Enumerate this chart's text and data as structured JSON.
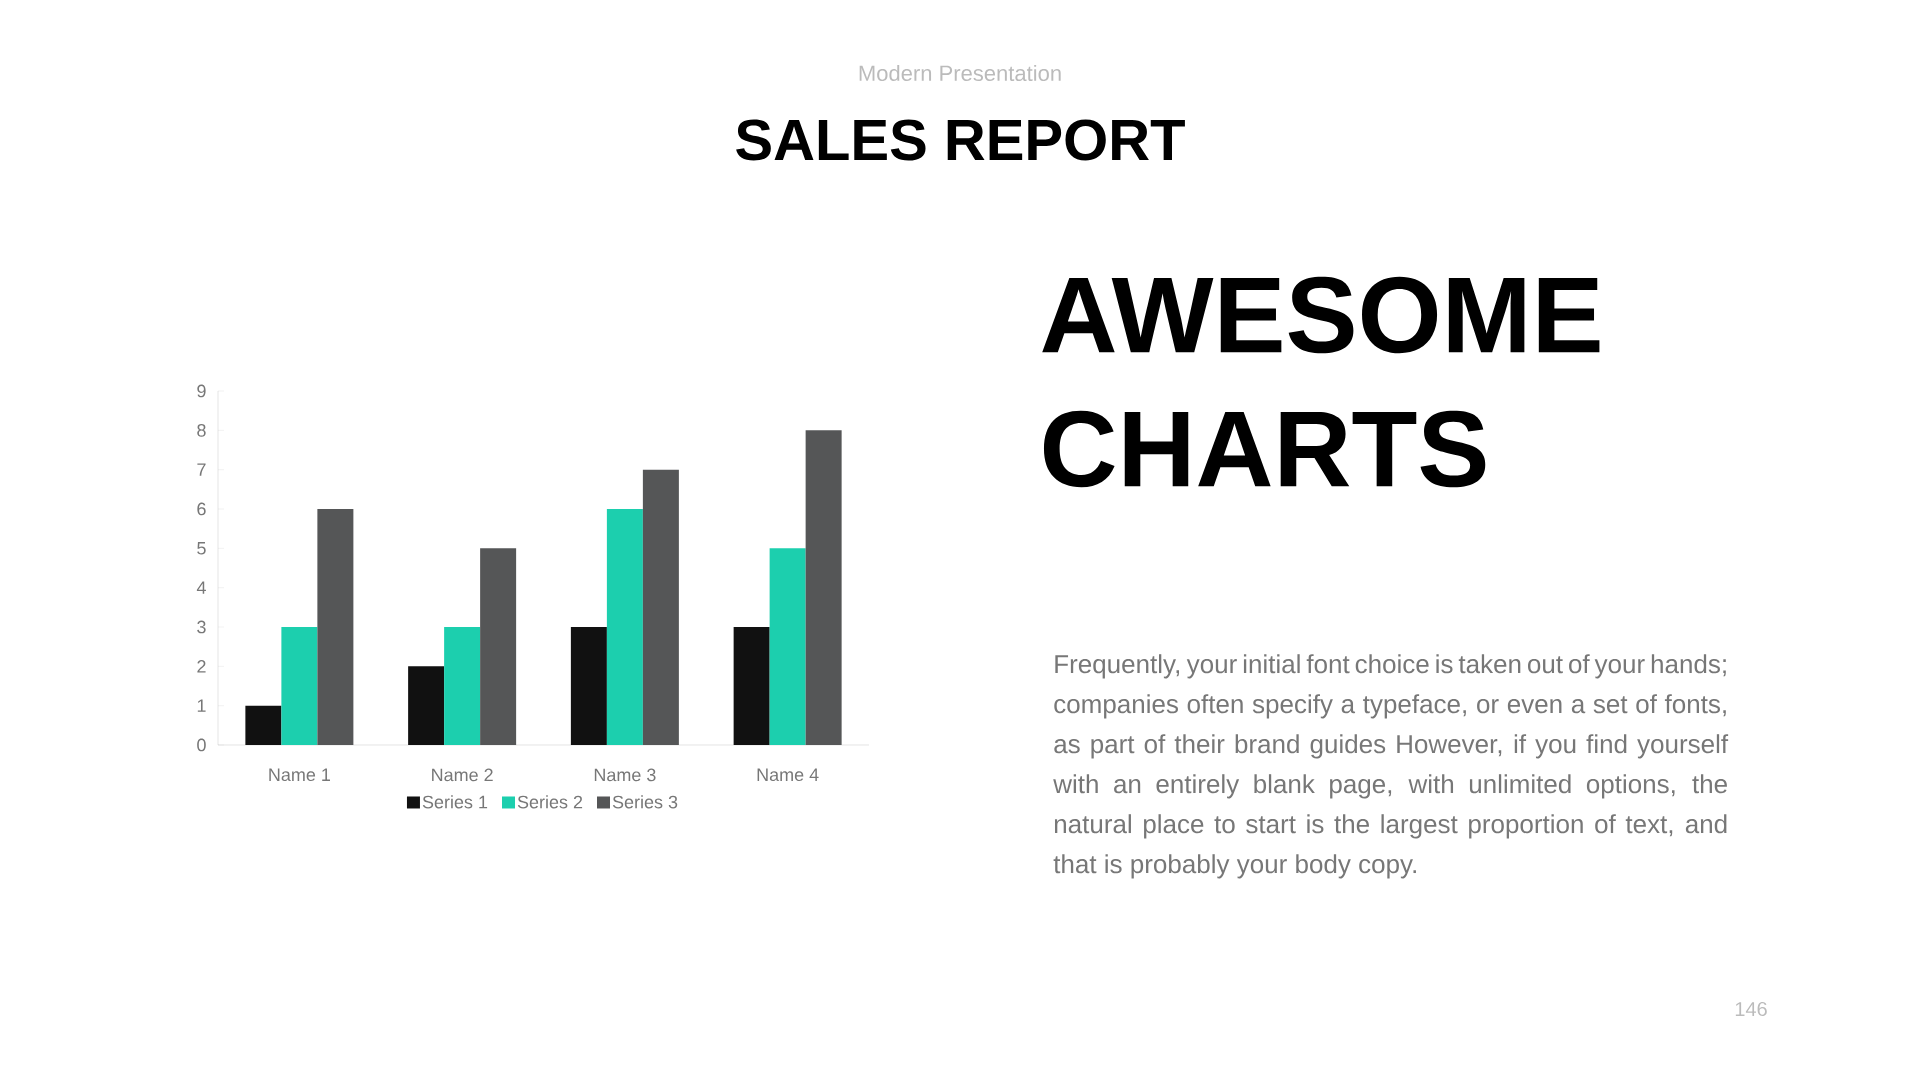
{
  "chart_data": {
    "type": "bar",
    "title": "SALES REPORT",
    "subtitle": "Modern Presentation",
    "categories": [
      "Name 1",
      "Name 2",
      "Name 3",
      "Name 4"
    ],
    "series": [
      {
        "name": "Series 1",
        "color": "#111111",
        "values": [
          1,
          2,
          3,
          3
        ]
      },
      {
        "name": "Series 2",
        "color": "#1ccfae",
        "values": [
          3,
          3,
          6,
          5
        ]
      },
      {
        "name": "Series 3",
        "color": "#555657",
        "values": [
          6,
          5,
          7,
          8
        ]
      }
    ],
    "ylim": [
      0,
      9
    ],
    "yticks": [
      0,
      1,
      2,
      3,
      4,
      5,
      6,
      7,
      8,
      9
    ],
    "grid": false,
    "legend": "bottom",
    "annotations": [
      "AWESOME",
      "CHARTS",
      "Frequently, your initial font choice is taken out of your hands; companies often specify a typeface, or even a set of fonts, as part of their brand guides However, if you find yourself with an entirely blank page, with unlimited options, the natural place to start is the largest proportion of text, and that is probably your body copy.",
      "146"
    ]
  }
}
